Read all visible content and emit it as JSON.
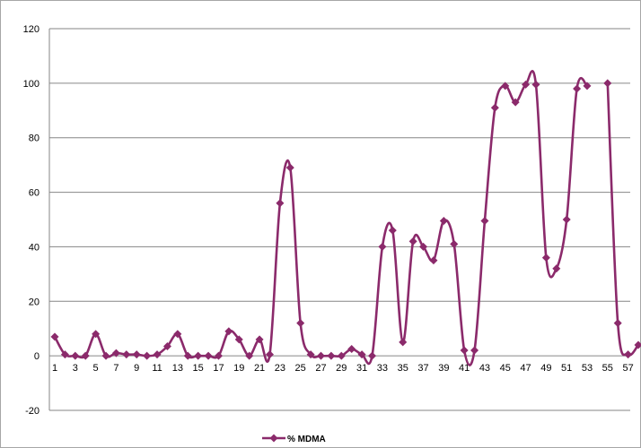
{
  "chart_data": {
    "type": "line",
    "x": [
      1,
      2,
      3,
      4,
      5,
      6,
      7,
      8,
      9,
      10,
      11,
      12,
      13,
      14,
      15,
      16,
      17,
      18,
      19,
      20,
      21,
      22,
      23,
      24,
      25,
      26,
      27,
      28,
      29,
      30,
      31,
      32,
      33,
      34,
      35,
      36,
      37,
      38,
      39,
      40,
      41,
      42,
      43,
      44,
      45,
      46,
      47,
      48,
      49,
      50,
      51,
      52,
      53,
      54,
      55,
      56,
      57,
      58
    ],
    "x_tick_labels": [
      "1",
      "3",
      "5",
      "7",
      "9",
      "11",
      "13",
      "15",
      "17",
      "19",
      "21",
      "23",
      "25",
      "27",
      "29",
      "31",
      "33",
      "35",
      "37",
      "39",
      "41",
      "43",
      "45",
      "47",
      "49",
      "51",
      "53",
      "55",
      "57"
    ],
    "series": [
      {
        "name": "% MDMA",
        "color": "#8b2a6b",
        "values": [
          7,
          0.5,
          0,
          0,
          8,
          0,
          1,
          0.5,
          0.5,
          0,
          0.5,
          3.5,
          8,
          0,
          0,
          0,
          0,
          9,
          6,
          0,
          6,
          0.5,
          56,
          69,
          12,
          0.5,
          0,
          0,
          0,
          2.5,
          0.5,
          0,
          40,
          46,
          5,
          42,
          40,
          35,
          49.5,
          41,
          2,
          2,
          49.5,
          91,
          99,
          93,
          99.5,
          99.5,
          36,
          32,
          50,
          98,
          99,
          null,
          100,
          12,
          0.5,
          4
        ]
      }
    ],
    "ylim": [
      -20,
      120
    ],
    "y_ticks": [
      -20,
      0,
      20,
      40,
      60,
      80,
      100,
      120
    ],
    "grid": "horizontal",
    "legend": "bottom",
    "marker": "diamond",
    "line": "smooth"
  }
}
